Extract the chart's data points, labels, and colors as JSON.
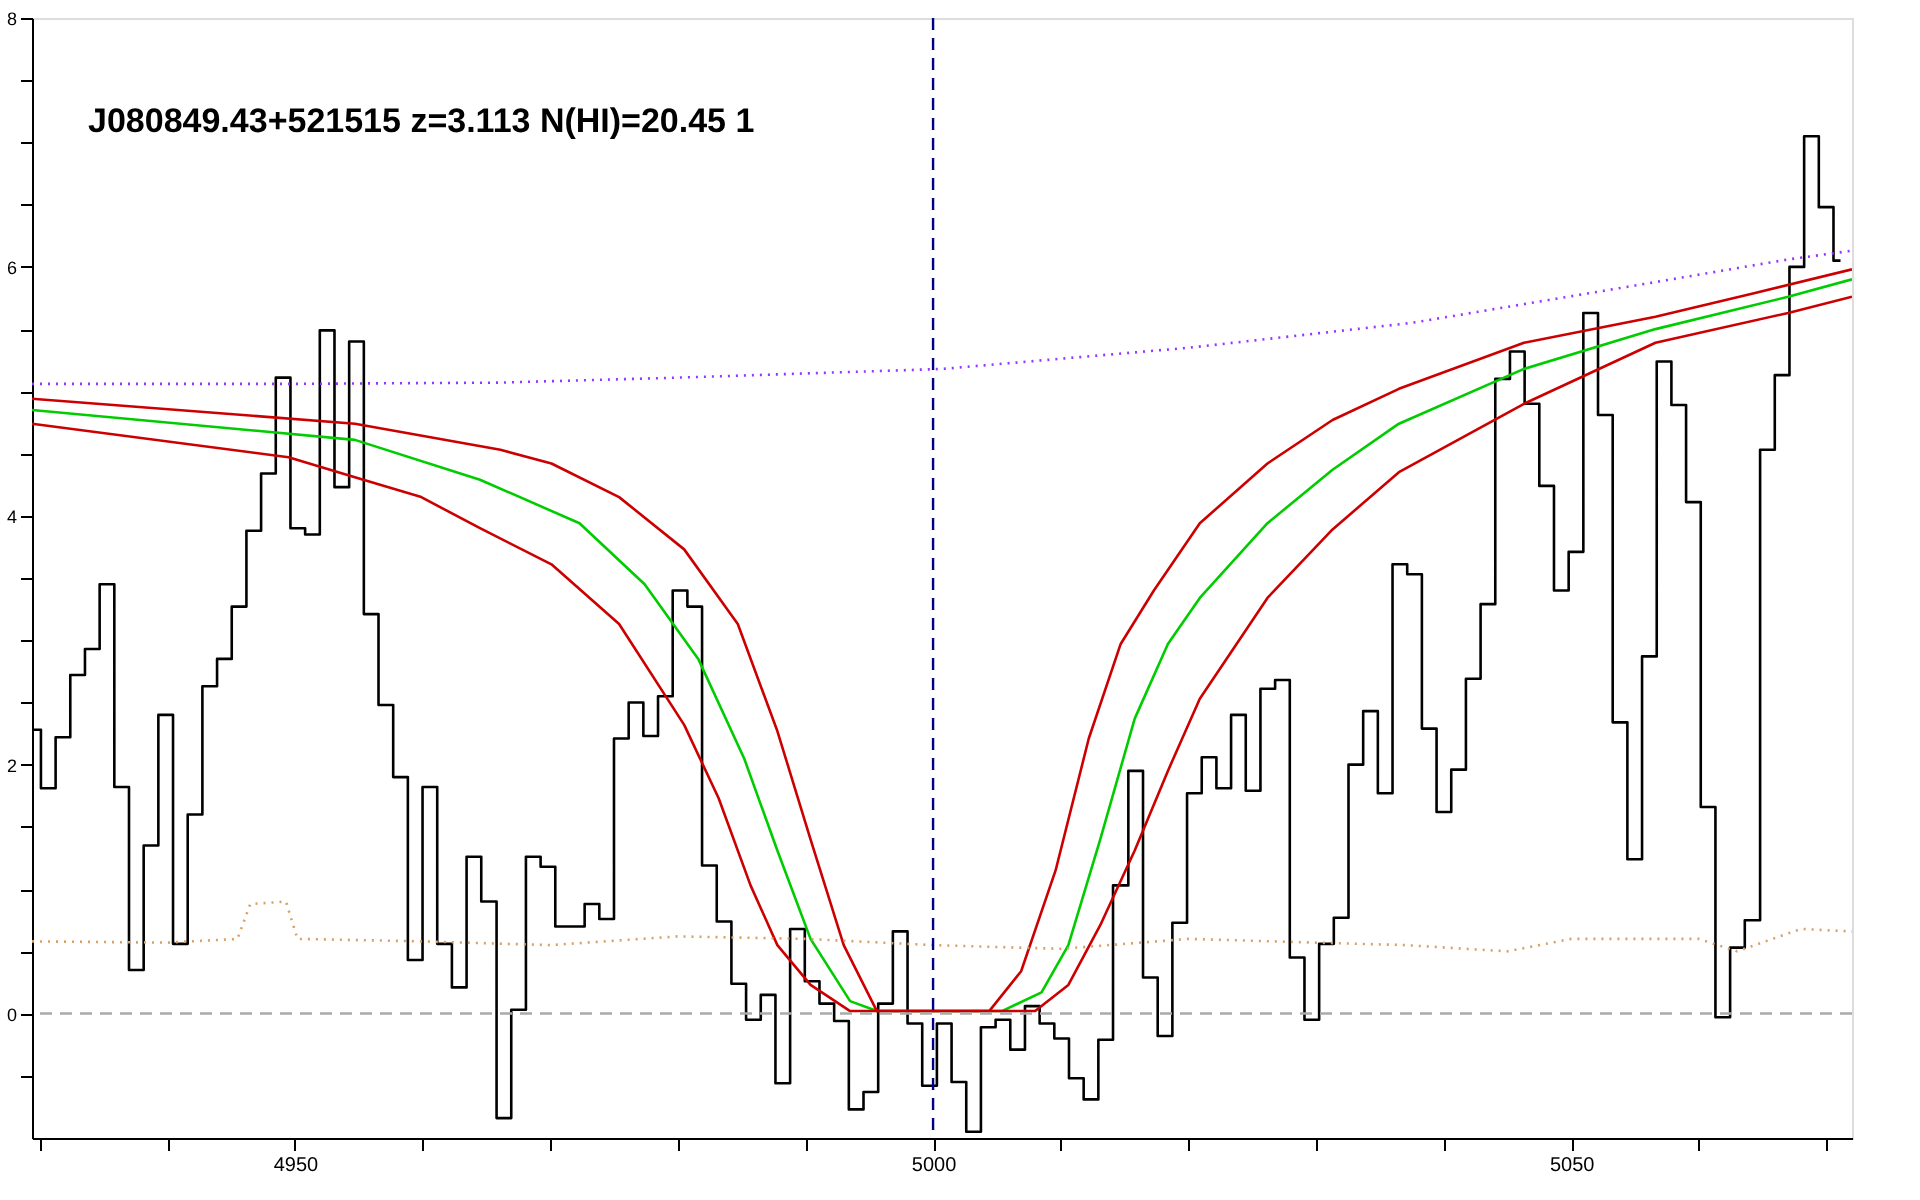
{
  "chart_data": {
    "type": "step",
    "title": "J080849.43+521515 z=3.113 N(HI)=20.45 1",
    "xlim": [
      4929.4,
      5072
    ],
    "ylim": [
      -1,
      8
    ],
    "xticks": [
      {
        "value": 4930,
        "label": null
      },
      {
        "value": 4940,
        "label": null
      },
      4950,
      {
        "value": 4960,
        "label": null
      },
      {
        "value": 4970,
        "label": null
      },
      {
        "value": 4980,
        "label": null
      },
      {
        "value": 4990,
        "label": null
      },
      5000,
      {
        "value": 5010,
        "label": null
      },
      {
        "value": 5020,
        "label": null
      },
      {
        "value": 5030,
        "label": null
      },
      {
        "value": 5040,
        "label": null
      },
      5050,
      {
        "value": 5060,
        "label": null
      },
      {
        "value": 5070,
        "label": null
      }
    ],
    "yticks": [
      {
        "value": -0.5,
        "label": null
      },
      0,
      {
        "value": 0.5,
        "label": null
      },
      {
        "value": 1,
        "label": null
      },
      {
        "value": 1.5,
        "label": null
      },
      2,
      {
        "value": 2.5,
        "label": null
      },
      {
        "value": 3,
        "label": null
      },
      {
        "value": 3.5,
        "label": null
      },
      4,
      {
        "value": 4.5,
        "label": null
      },
      {
        "value": 5,
        "label": null
      },
      {
        "value": 5.5,
        "label": null
      },
      6,
      {
        "value": 6.5,
        "label": null
      },
      {
        "value": 7,
        "label": null
      },
      {
        "value": 7.5,
        "label": null
      },
      8
    ],
    "grid": false,
    "marker": "none",
    "series": [
      {
        "color": "#000000",
        "line_style": "solid",
        "x": [
          4929.5,
          4930.7,
          4931.8,
          4933.0,
          4934.1,
          4935.3,
          4936.4,
          4937.6,
          4938.7,
          4939.9,
          4941.0,
          4942.2,
          4943.3,
          4944.5,
          4945.6,
          4946.8,
          4947.9,
          4949.1,
          4950.2,
          4951.4,
          4952.5,
          4953.7,
          4954.8,
          4956.0,
          4957.1,
          4958.3,
          4959.4,
          4960.6,
          4961.7,
          4962.9,
          4964.0,
          4965.2,
          4966.4,
          4967.5,
          4968.7,
          4969.8,
          4971.0,
          4972.1,
          4973.3,
          4974.4,
          4975.6,
          4976.7,
          4977.9,
          4979.0,
          4980.2,
          4981.3,
          4982.5,
          4983.6,
          4984.8,
          4985.9,
          4987.1,
          4988.2,
          4989.4,
          4990.5,
          4991.7,
          4992.8,
          4994.0,
          4995.1,
          4996.3,
          4997.4,
          4998.6,
          4999.7,
          5000.9,
          5002.0,
          5003.2,
          5004.3,
          5005.5,
          5006.6,
          5007.8,
          5008.9,
          5010.1,
          5011.2,
          5012.4,
          5013.5,
          5014.7,
          5015.9,
          5017.0,
          5018.2,
          5019.3,
          5020.5,
          5021.6,
          5022.8,
          5023.9,
          5025.1,
          5026.2,
          5027.4,
          5028.5,
          5029.7,
          5030.8,
          5032.0,
          5033.1,
          5034.3,
          5035.4,
          5036.6,
          5037.7,
          5038.9,
          5040.0,
          5041.2,
          5042.3,
          5043.5,
          5044.6,
          5045.8,
          5046.9,
          5048.1,
          5049.2,
          5050.4,
          5051.5,
          5052.7,
          5053.8,
          5055.0,
          5056.1,
          5057.3,
          5058.4,
          5059.6,
          5060.7,
          5061.9,
          5063.0,
          5064.2,
          5065.4,
          5066.5,
          5067.7,
          5068.8,
          5070.0,
          5071.1
        ],
        "values": [
          2.28,
          1.81,
          2.22,
          2.72,
          2.93,
          3.45,
          1.82,
          0.35,
          1.35,
          2.4,
          0.56,
          1.6,
          2.63,
          2.85,
          3.27,
          3.88,
          4.34,
          5.11,
          3.9,
          3.85,
          5.49,
          4.23,
          5.4,
          3.21,
          2.48,
          1.9,
          0.43,
          1.82,
          0.56,
          0.21,
          1.26,
          0.9,
          -0.84,
          0.03,
          1.26,
          1.18,
          0.7,
          0.7,
          0.88,
          0.76,
          2.21,
          2.5,
          2.23,
          2.55,
          3.4,
          3.27,
          1.19,
          0.74,
          0.24,
          -0.05,
          0.15,
          -0.56,
          0.68,
          0.26,
          0.08,
          -0.06,
          -0.77,
          -0.63,
          0.08,
          0.66,
          -0.08,
          -0.58,
          -0.08,
          -0.55,
          -0.95,
          -0.11,
          -0.05,
          -0.29,
          0.06,
          -0.08,
          -0.2,
          -0.52,
          -0.69,
          -0.21,
          1.03,
          1.95,
          0.29,
          -0.18,
          0.73,
          1.77,
          2.06,
          1.81,
          2.4,
          1.79,
          2.61,
          2.68,
          0.45,
          -0.05,
          0.56,
          0.77,
          2.0,
          2.43,
          1.77,
          3.61,
          3.53,
          2.29,
          1.62,
          1.96,
          2.69,
          3.29,
          5.1,
          5.32,
          4.9,
          4.24,
          3.4,
          3.71,
          5.63,
          4.81,
          2.34,
          1.24,
          2.87,
          5.24,
          4.89,
          4.11,
          1.66,
          -0.03,
          0.53,
          0.75,
          4.53,
          5.13,
          6.0,
          7.05,
          6.48,
          6.05
        ]
      },
      {
        "type": "line",
        "color": "#00cc00",
        "line_style": "solid",
        "x": [
          4929.4,
          4954.7,
          4964.5,
          4972.3,
          4977.4,
          4981.6,
          4985.2,
          4987.8,
          4990.4,
          4993.5,
          4995.6,
          5005.4,
          5008.5,
          5010.6,
          5013.1,
          5015.8,
          5018.4,
          5020.9,
          5026.2,
          5031.3,
          5036.5,
          5046.3,
          5056.6,
          5067.0,
          5072
        ],
        "values": [
          4.85,
          4.61,
          4.29,
          3.94,
          3.45,
          2.85,
          2.05,
          1.31,
          0.6,
          0.1,
          0.02,
          0.02,
          0.17,
          0.55,
          1.4,
          2.37,
          2.97,
          3.34,
          3.94,
          4.37,
          4.74,
          5.18,
          5.5,
          5.76,
          5.9
        ]
      },
      {
        "type": "line",
        "color": "#cc0000",
        "line_style": "solid",
        "x": [
          4929.4,
          4954.7,
          4966.1,
          4970.1,
          4975.4,
          4980.5,
          4984.7,
          4987.8,
          4990.4,
          4993.0,
          4995.6,
          5008.0,
          5010.6,
          5013.1,
          5015.8,
          5018.4,
          5020.9,
          5026.2,
          5031.3,
          5036.5,
          5046.3,
          5056.6,
          5067.0,
          5072
        ],
        "values": [
          4.94,
          4.74,
          4.53,
          4.42,
          4.15,
          3.73,
          3.13,
          2.27,
          1.4,
          0.55,
          0.02,
          0.02,
          0.23,
          0.71,
          1.31,
          1.95,
          2.53,
          3.34,
          3.89,
          4.35,
          4.9,
          5.39,
          5.63,
          5.76
        ]
      },
      {
        "type": "line",
        "color": "#cc0000",
        "line_style": "solid",
        "x": [
          4929.4,
          4949.5,
          4954.7,
          4959.9,
          4964.5,
          4970.1,
          4975.4,
          4980.5,
          4983.2,
          4985.7,
          4987.8,
          4990.4,
          4993.5,
          5004.4,
          5006.9,
          5009.6,
          5012.2,
          5014.7,
          5017.3,
          5020.9,
          5026.2,
          5031.3,
          5036.5,
          5046.3,
          5056.6,
          5064.4,
          5072
        ],
        "values": [
          4.74,
          4.47,
          4.31,
          4.15,
          3.9,
          3.61,
          3.13,
          2.32,
          1.73,
          1.03,
          0.55,
          0.23,
          0.02,
          0.02,
          0.34,
          1.15,
          2.21,
          2.97,
          3.4,
          3.94,
          4.42,
          4.77,
          5.02,
          5.39,
          5.6,
          5.79,
          5.98
        ]
      },
      {
        "type": "line",
        "color": "#9933ff",
        "line_style": "dotted",
        "x": [
          4929.4,
          4950,
          4966,
          4980,
          5000.7,
          5020,
          5037.5,
          5055,
          5067,
          5072
        ],
        "values": [
          5.06,
          5.06,
          5.07,
          5.11,
          5.18,
          5.35,
          5.55,
          5.85,
          6.06,
          6.13
        ]
      },
      {
        "type": "line",
        "color": "#d9a066",
        "line_style": "dotted",
        "x": [
          4929.4,
          4940,
          4945.5,
          4946.5,
          4949.3,
          4950.2,
          4960,
          4970,
          4980,
          4990,
          5000,
          5010,
          5020,
          5030,
          5037,
          5045,
          5050,
          5060,
          5063,
          5068,
          5072
        ],
        "values": [
          0.58,
          0.57,
          0.6,
          0.88,
          0.9,
          0.6,
          0.58,
          0.55,
          0.62,
          0.6,
          0.55,
          0.52,
          0.6,
          0.57,
          0.55,
          0.5,
          0.6,
          0.6,
          0.5,
          0.68,
          0.66
        ]
      }
    ],
    "ref_lines": [
      {
        "axis": "y",
        "value": 0,
        "color": "#aaaaaa",
        "line_style": "dashed"
      },
      {
        "axis": "x",
        "value": 5000,
        "color": "#000080",
        "line_style": "dashed"
      }
    ]
  }
}
